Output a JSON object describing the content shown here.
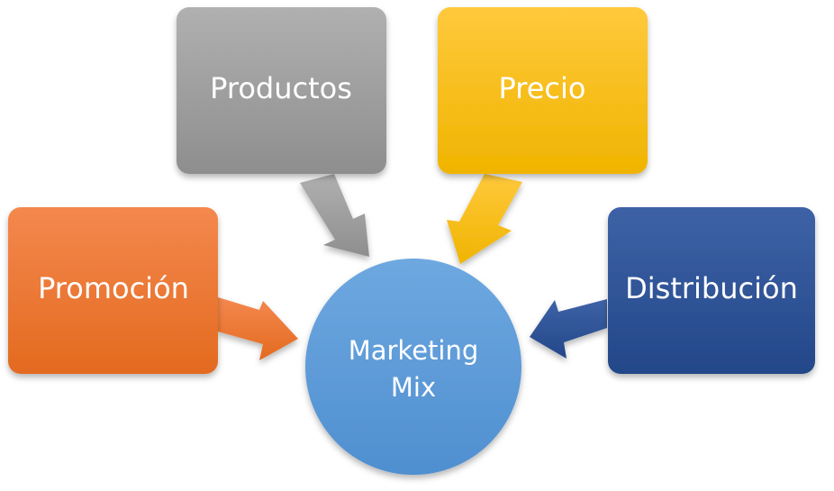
{
  "diagram": {
    "center": {
      "line1": "Marketing",
      "line2": "Mix",
      "color": "#5b9bd5"
    },
    "nodes": {
      "productos": {
        "label": "Productos",
        "color": "#a5a5a5"
      },
      "precio": {
        "label": "Precio",
        "color": "#ffc000"
      },
      "promocion": {
        "label": "Promoción",
        "color": "#ed7d31"
      },
      "distribucion": {
        "label": "Distribución",
        "color": "#2f5597"
      }
    }
  }
}
